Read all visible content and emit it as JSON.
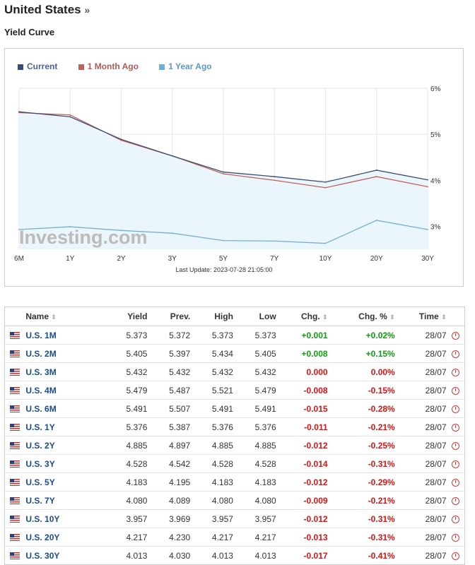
{
  "header": {
    "title": "United States",
    "arrow": "»",
    "subtitle": "Yield Curve"
  },
  "legend": [
    {
      "label": "Current",
      "color": "#3a4a7a"
    },
    {
      "label": "1 Month Ago",
      "color": "#c0605a"
    },
    {
      "label": "1 Year Ago",
      "color": "#6fb0d8"
    }
  ],
  "watermark": "Investing.com",
  "last_update": "Last Update: 2023-07-28 21:05:00",
  "chart_data": {
    "type": "line",
    "categories": [
      "6M",
      "1Y",
      "2Y",
      "3Y",
      "5Y",
      "7Y",
      "10Y",
      "20Y",
      "30Y"
    ],
    "ylim": [
      2.5,
      6
    ],
    "y_ticks": [
      "6%",
      "5%",
      "4%",
      "3%"
    ],
    "y_tick_values": [
      6,
      5,
      4,
      3
    ],
    "series": [
      {
        "name": "Current",
        "values": [
          5.49,
          5.38,
          4.89,
          4.53,
          4.18,
          4.08,
          3.96,
          4.22,
          4.01
        ],
        "color": "#3a4a7a"
      },
      {
        "name": "1 Month Ago",
        "values": [
          5.47,
          5.42,
          4.87,
          4.53,
          4.14,
          4.0,
          3.84,
          4.08,
          3.86
        ],
        "color": "#c0605a"
      },
      {
        "name": "1 Year Ago",
        "values": [
          2.93,
          2.99,
          2.91,
          2.85,
          2.69,
          2.68,
          2.63,
          3.13,
          2.93
        ],
        "color": "#6fb0d8"
      }
    ]
  },
  "table": {
    "headers": {
      "name": "Name",
      "yield": "Yield",
      "prev": "Prev.",
      "high": "High",
      "low": "Low",
      "chg": "Chg.",
      "chgpct": "Chg. %",
      "time": "Time"
    },
    "rows": [
      {
        "name": "U.S. 1M",
        "yield": "5.373",
        "prev": "5.372",
        "high": "5.373",
        "low": "5.373",
        "chg": "+0.001",
        "chgpct": "+0.02%",
        "time": "28/07",
        "dir": "pos"
      },
      {
        "name": "U.S. 2M",
        "yield": "5.405",
        "prev": "5.397",
        "high": "5.434",
        "low": "5.405",
        "chg": "+0.008",
        "chgpct": "+0.15%",
        "time": "28/07",
        "dir": "pos"
      },
      {
        "name": "U.S. 3M",
        "yield": "5.432",
        "prev": "5.432",
        "high": "5.432",
        "low": "5.432",
        "chg": "0.000",
        "chgpct": "0.00%",
        "time": "28/07",
        "dir": "neg"
      },
      {
        "name": "U.S. 4M",
        "yield": "5.479",
        "prev": "5.487",
        "high": "5.521",
        "low": "5.479",
        "chg": "-0.008",
        "chgpct": "-0.15%",
        "time": "28/07",
        "dir": "neg"
      },
      {
        "name": "U.S. 6M",
        "yield": "5.491",
        "prev": "5.507",
        "high": "5.491",
        "low": "5.491",
        "chg": "-0.015",
        "chgpct": "-0.28%",
        "time": "28/07",
        "dir": "neg"
      },
      {
        "name": "U.S. 1Y",
        "yield": "5.376",
        "prev": "5.387",
        "high": "5.376",
        "low": "5.376",
        "chg": "-0.011",
        "chgpct": "-0.21%",
        "time": "28/07",
        "dir": "neg"
      },
      {
        "name": "U.S. 2Y",
        "yield": "4.885",
        "prev": "4.897",
        "high": "4.885",
        "low": "4.885",
        "chg": "-0.012",
        "chgpct": "-0.25%",
        "time": "28/07",
        "dir": "neg"
      },
      {
        "name": "U.S. 3Y",
        "yield": "4.528",
        "prev": "4.542",
        "high": "4.528",
        "low": "4.528",
        "chg": "-0.014",
        "chgpct": "-0.31%",
        "time": "28/07",
        "dir": "neg"
      },
      {
        "name": "U.S. 5Y",
        "yield": "4.183",
        "prev": "4.195",
        "high": "4.183",
        "low": "4.183",
        "chg": "-0.012",
        "chgpct": "-0.29%",
        "time": "28/07",
        "dir": "neg"
      },
      {
        "name": "U.S. 7Y",
        "yield": "4.080",
        "prev": "4.089",
        "high": "4.080",
        "low": "4.080",
        "chg": "-0.009",
        "chgpct": "-0.21%",
        "time": "28/07",
        "dir": "neg"
      },
      {
        "name": "U.S. 10Y",
        "yield": "3.957",
        "prev": "3.969",
        "high": "3.957",
        "low": "3.957",
        "chg": "-0.012",
        "chgpct": "-0.31%",
        "time": "28/07",
        "dir": "neg"
      },
      {
        "name": "U.S. 20Y",
        "yield": "4.217",
        "prev": "4.230",
        "high": "4.217",
        "low": "4.217",
        "chg": "-0.013",
        "chgpct": "-0.31%",
        "time": "28/07",
        "dir": "neg"
      },
      {
        "name": "U.S. 30Y",
        "yield": "4.013",
        "prev": "4.030",
        "high": "4.013",
        "low": "4.013",
        "chg": "-0.017",
        "chgpct": "-0.41%",
        "time": "28/07",
        "dir": "neg"
      }
    ]
  }
}
